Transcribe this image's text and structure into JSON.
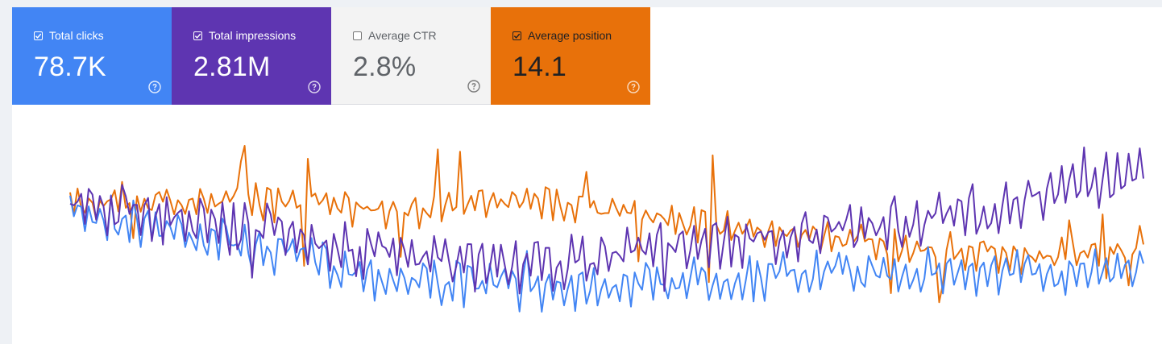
{
  "metrics": [
    {
      "id": "clicks",
      "label": "Total clicks",
      "value": "78.7K",
      "checked": true,
      "color": "#4285f4"
    },
    {
      "id": "impr",
      "label": "Total impressions",
      "value": "2.81M",
      "checked": true,
      "color": "#5e35b1"
    },
    {
      "id": "ctr",
      "label": "Average CTR",
      "value": "2.8%",
      "checked": false,
      "color": "#f3f3f3"
    },
    {
      "id": "pos",
      "label": "Average position",
      "value": "14.1",
      "checked": true,
      "color": "#e8710a"
    }
  ],
  "chart_data": {
    "type": "line",
    "grid": false,
    "series": [
      {
        "name": "Total clicks",
        "color": "#4285f4"
      },
      {
        "name": "Total impressions",
        "color": "#5e35b1"
      },
      {
        "name": "Average position",
        "color": "#e8710a"
      }
    ]
  }
}
